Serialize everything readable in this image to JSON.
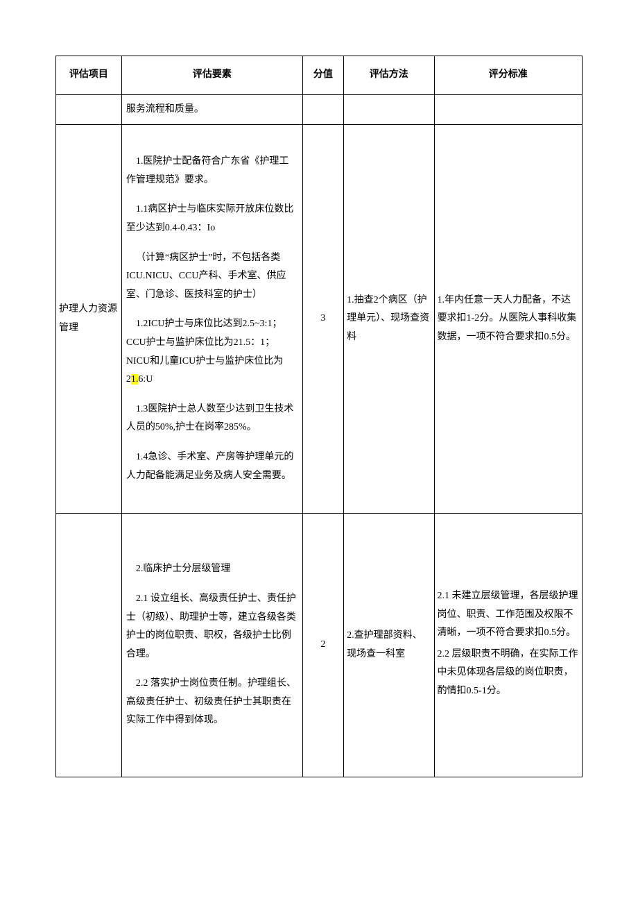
{
  "headers": {
    "item": "评估项目",
    "factor": "评估要素",
    "score": "分值",
    "method": "评估方法",
    "criteria": "评分标准"
  },
  "rows": [
    {
      "item": "",
      "factor": "服务流程和质量。",
      "score": "",
      "method": "",
      "criteria": ""
    },
    {
      "item": "护理人力资源管理",
      "factor_p1": "1.医院护士配备符合广东省《护理工作管理规范》要求。",
      "factor_p2": "1.1病区护士与临床实际开放床位数比至少达到0.4-0.43：Io",
      "factor_p3": "（计算“病区护士”时，不包括各类ICU.NICU、CCU产科、手术室、供应室、门急诊、医技科室的护士）",
      "factor_p4a": "1.2ICU护士与床位比达到2.5~3:1；CCU护士与监护床位比为21.5：1；NICU和儿童ICU护士与监护床位比为2",
      "factor_p4_highlight": "1.",
      "factor_p4b": "6:U",
      "factor_p5": "1.3医院护士总人数至少达到卫生技术人员的50%,护士在岗率285%。",
      "factor_p6": "1.4急诊、手术室、产房等护理单元的人力配备能满足业务及病人安全需要。",
      "score": "3",
      "method": "1.抽查2个病区（护理单元）、现场查资料",
      "criteria": "1.年内任意一天人力配备，不达要求扣1-2分。从医院人事科收集数据，一项不符合要求扣0.5分。"
    },
    {
      "item": "",
      "factor_p1": "2.临床护士分层级管理",
      "factor_p2": "2.1 设立组长、高级责任护士、责任护士（初级）、助理护士等，建立各级各类护士的岗位职责、职权，各级护士比例合理。",
      "factor_p3": "2.2 落实护士岗位责任制。护理组长、高级责任护士、初级责任护士其职责在实际工作中得到体现。",
      "score": "2",
      "method": "2.查护理部资料、现场查一科室",
      "criteria_p1": "2.1 未建立层级管理，各层级护理岗位、职责、工作范围及权限不清晰，一项不符合要求扣0.5分。",
      "criteria_p2": "2.2 层级职责不明确，在实际工作中未见体现各层级的岗位职责，酌情扣0.5-1分。"
    }
  ]
}
